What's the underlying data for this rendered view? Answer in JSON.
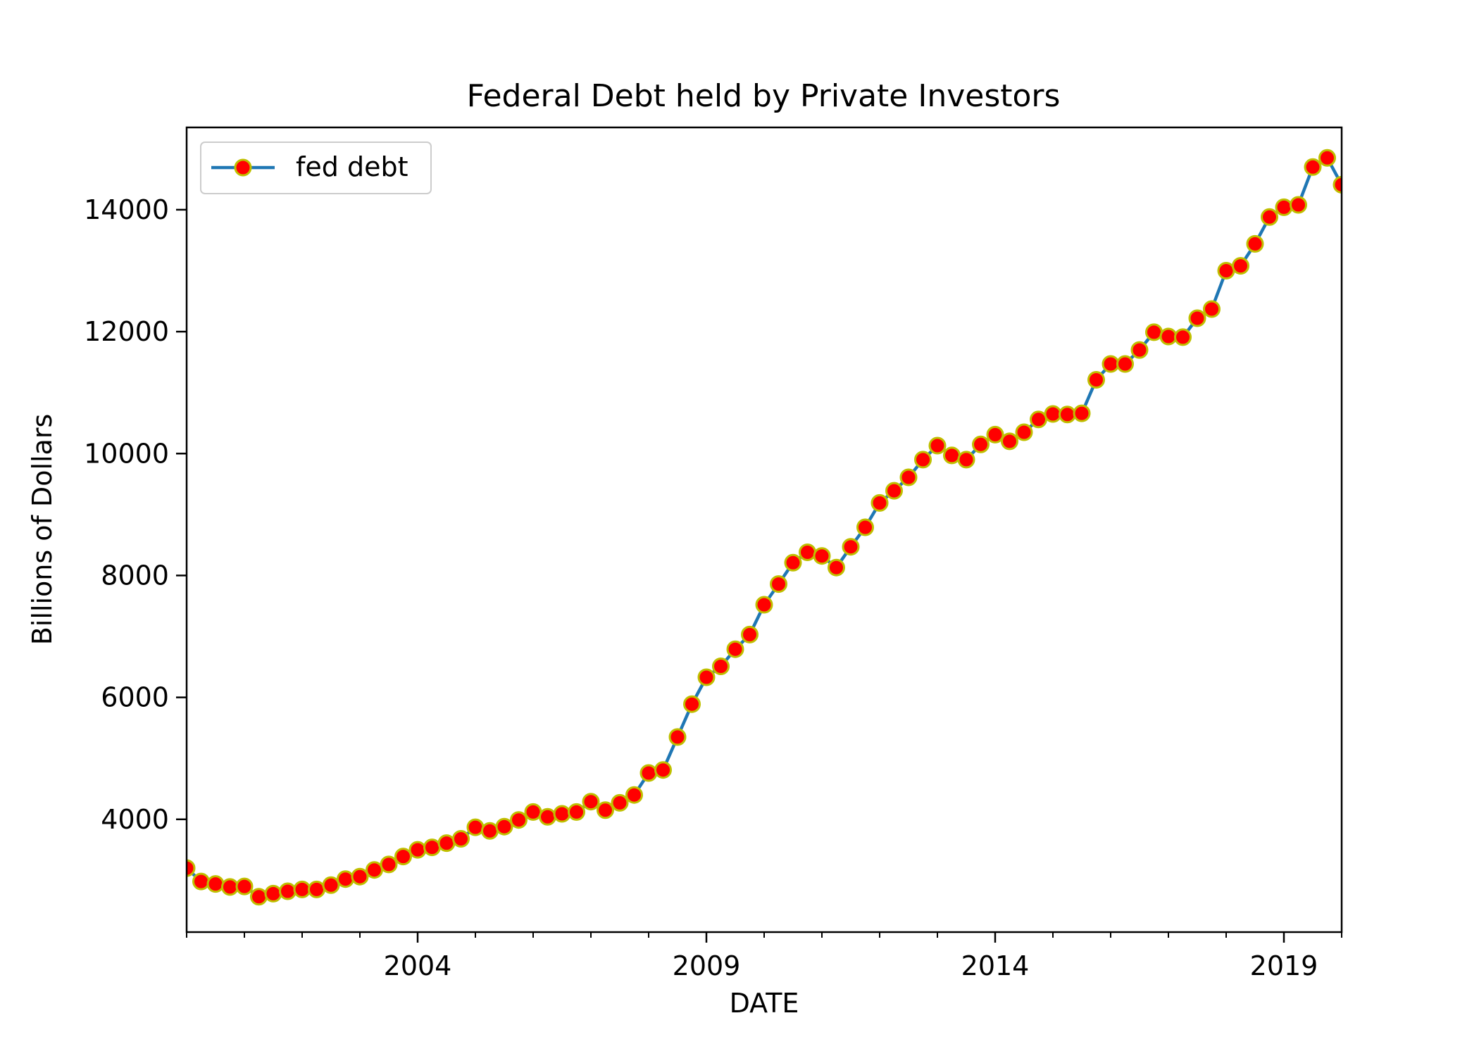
{
  "chart_data": {
    "type": "line",
    "title": "Federal Debt held by Private Investors",
    "xlabel": "DATE",
    "ylabel": "Billions of Dollars",
    "xlim": [
      2000.0,
      2020.0
    ],
    "ylim": [
      2150,
      15350
    ],
    "x_ticks": [
      2004,
      2009,
      2014,
      2019
    ],
    "y_ticks": [
      4000,
      6000,
      8000,
      10000,
      12000,
      14000
    ],
    "grid": false,
    "legend_position": "top-left",
    "colors": {
      "line": "#1f77b4",
      "marker_fill": "#ff0000",
      "marker_edge": "#bfbf00",
      "axes": "#000000",
      "background": "#ffffff"
    },
    "series": [
      {
        "name": "fed debt",
        "x": [
          2000.0,
          2000.25,
          2000.5,
          2000.75,
          2001.0,
          2001.25,
          2001.5,
          2001.75,
          2002.0,
          2002.25,
          2002.5,
          2002.75,
          2003.0,
          2003.25,
          2003.5,
          2003.75,
          2004.0,
          2004.25,
          2004.5,
          2004.75,
          2005.0,
          2005.25,
          2005.5,
          2005.75,
          2006.0,
          2006.25,
          2006.5,
          2006.75,
          2007.0,
          2007.25,
          2007.5,
          2007.75,
          2008.0,
          2008.25,
          2008.5,
          2008.75,
          2009.0,
          2009.25,
          2009.5,
          2009.75,
          2010.0,
          2010.25,
          2010.5,
          2010.75,
          2011.0,
          2011.25,
          2011.5,
          2011.75,
          2012.0,
          2012.25,
          2012.5,
          2012.75,
          2013.0,
          2013.25,
          2013.5,
          2013.75,
          2014.0,
          2014.25,
          2014.5,
          2014.75,
          2015.0,
          2015.25,
          2015.5,
          2015.75,
          2016.0,
          2016.25,
          2016.5,
          2016.75,
          2017.0,
          2017.25,
          2017.5,
          2017.75,
          2018.0,
          2018.25,
          2018.5,
          2018.75,
          2019.0,
          2019.25,
          2019.5,
          2019.75,
          2020.0
        ],
        "values": [
          3200,
          2980,
          2940,
          2890,
          2900,
          2730,
          2780,
          2820,
          2850,
          2850,
          2920,
          3020,
          3060,
          3170,
          3260,
          3390,
          3500,
          3540,
          3610,
          3680,
          3870,
          3810,
          3880,
          3990,
          4120,
          4040,
          4090,
          4120,
          4290,
          4150,
          4270,
          4400,
          4760,
          4810,
          5350,
          5890,
          6330,
          6510,
          6790,
          7030,
          7520,
          7860,
          8210,
          8380,
          8320,
          8130,
          8470,
          8790,
          9190,
          9390,
          9610,
          9900,
          10130,
          9970,
          9900,
          10150,
          10310,
          10200,
          10350,
          10560,
          10650,
          10640,
          10660,
          11210,
          11470,
          11470,
          11700,
          11990,
          11920,
          11910,
          12220,
          12370,
          13000,
          13080,
          13440,
          13880,
          14040,
          14080,
          14700,
          14850,
          14410
        ]
      }
    ]
  }
}
